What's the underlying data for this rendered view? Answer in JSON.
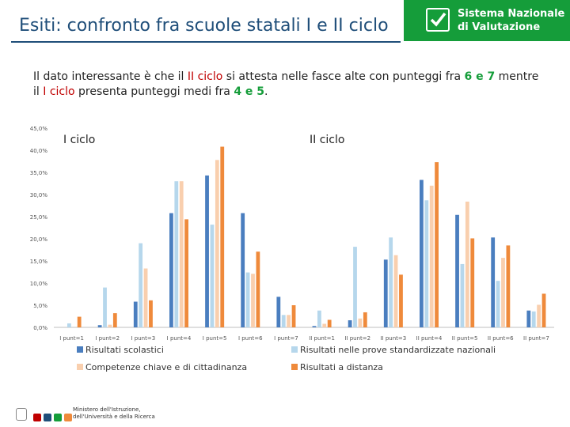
{
  "slide": {
    "title": "Esiti: confronto fra scuole statali I e II ciclo"
  },
  "brand": {
    "line1": "Sistema Nazionale",
    "line2": "di Valutazione",
    "color": "#159d3a"
  },
  "intro": {
    "p1": "Il dato interessante è che il ",
    "p2": "II ciclo",
    "p3": " si attesta nelle fasce alte con punteggi fra ",
    "p4": "6 e 7",
    "p5": " mentre il ",
    "p6": "I ciclo",
    "p7": " presenta punteggi medi fra ",
    "p8": "4 e 5",
    "p9": "."
  },
  "footer": {
    "line1": "Ministero dell'Istruzione,",
    "line2": "dell'Università e della Ricerca"
  },
  "chart_data": {
    "type": "bar",
    "ylim": [
      0,
      45
    ],
    "yticks": [
      "0,0%",
      "5,0%",
      "10,0%",
      "15,0%",
      "20,0%",
      "25,0%",
      "30,0%",
      "35,0%",
      "40,0%",
      "45,0%"
    ],
    "groups": [
      {
        "label": "I ciclo",
        "categories": [
          "I punt=1",
          "I punt=2",
          "I punt=3",
          "I punt=4",
          "I punt=5",
          "I punt=6",
          "I punt=7"
        ],
        "series_values": [
          [
            0.0,
            0.5,
            5.8,
            25.8,
            34.3,
            25.8,
            6.9
          ],
          [
            0.9,
            9.0,
            19.0,
            33.0,
            23.2,
            12.4,
            2.8
          ],
          [
            0.0,
            0.6,
            13.3,
            33.0,
            37.8,
            12.1,
            2.8
          ],
          [
            2.4,
            3.2,
            6.1,
            24.4,
            40.8,
            17.1,
            5.0
          ]
        ]
      },
      {
        "label": "II ciclo",
        "categories": [
          "II punt=1",
          "II punt=2",
          "II punt=3",
          "II punt=4",
          "II punt=5",
          "II punt=6",
          "II punt=7"
        ],
        "series_values": [
          [
            0.3,
            1.6,
            15.3,
            33.3,
            25.4,
            20.3,
            3.8
          ],
          [
            3.8,
            18.2,
            20.3,
            28.7,
            14.3,
            10.5,
            3.6
          ],
          [
            0.8,
            2.0,
            16.3,
            32.0,
            28.4,
            15.7,
            5.1
          ],
          [
            1.7,
            3.4,
            11.9,
            37.3,
            20.1,
            18.5,
            7.6
          ]
        ]
      }
    ],
    "series": [
      {
        "name": "Risultati scolastici",
        "color": "#4a7ebf"
      },
      {
        "name": "Risultati nelle prove standardizzate nazionali",
        "color": "#b6d7ec"
      },
      {
        "name": "Competenze chiave e di cittadinanza",
        "color": "#f9cfae"
      },
      {
        "name": "Risultati a distanza",
        "color": "#ef8a3b"
      }
    ],
    "legend_position": "bottom"
  }
}
